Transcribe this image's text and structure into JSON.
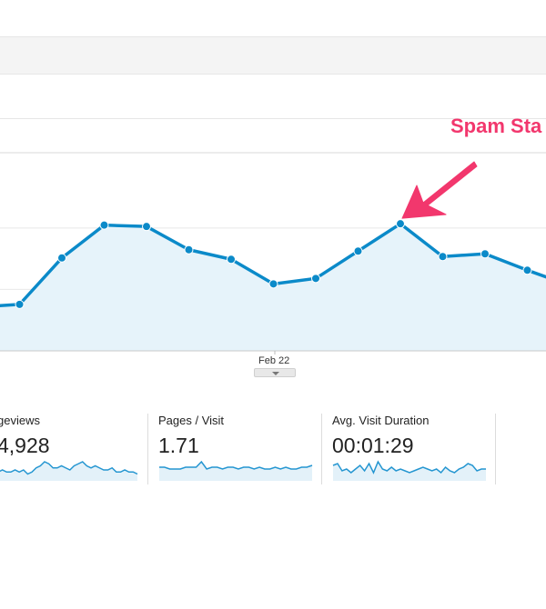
{
  "annotation": {
    "text": "Spam Sta"
  },
  "chart_data": {
    "type": "area",
    "title": "",
    "xlabel": "",
    "ylabel": "",
    "x_tick_labels": [
      "Feb 22"
    ],
    "series": [
      {
        "values": [
          32,
          34,
          68,
          92,
          91,
          74,
          67,
          49,
          53,
          73,
          93,
          69,
          71,
          59,
          48
        ]
      }
    ],
    "ylim": [
      0,
      145
    ],
    "grid": true,
    "colors": {
      "line": "#0b8ac9",
      "fill": "#e6f3fa"
    },
    "annotated_point_index": 10
  },
  "metrics": [
    {
      "label": "geviews",
      "value": "4,928",
      "sparkline": [
        3,
        4,
        3,
        3,
        4,
        3,
        4,
        2,
        3,
        5,
        6,
        8,
        7,
        5,
        5,
        6,
        5,
        4,
        6,
        7,
        8,
        6,
        5,
        6,
        5,
        4,
        4,
        5,
        3,
        3,
        4,
        3,
        3,
        2
      ]
    },
    {
      "label": "Pages / Visit",
      "value": "1.71",
      "sparkline": [
        6,
        6,
        5,
        5,
        5,
        6,
        6,
        6,
        9,
        5,
        6,
        6,
        5,
        6,
        6,
        5,
        6,
        6,
        5,
        6,
        5,
        5,
        6,
        5,
        6,
        5,
        5,
        6,
        6,
        7
      ]
    },
    {
      "label": "Avg. Visit Duration",
      "value": "00:01:29",
      "sparkline": [
        7,
        8,
        4,
        5,
        3,
        5,
        7,
        4,
        8,
        3,
        9,
        5,
        4,
        6,
        4,
        5,
        4,
        3,
        4,
        5,
        6,
        5,
        4,
        5,
        3,
        6,
        4,
        3,
        5,
        6,
        8,
        7,
        4,
        5,
        5
      ]
    }
  ]
}
